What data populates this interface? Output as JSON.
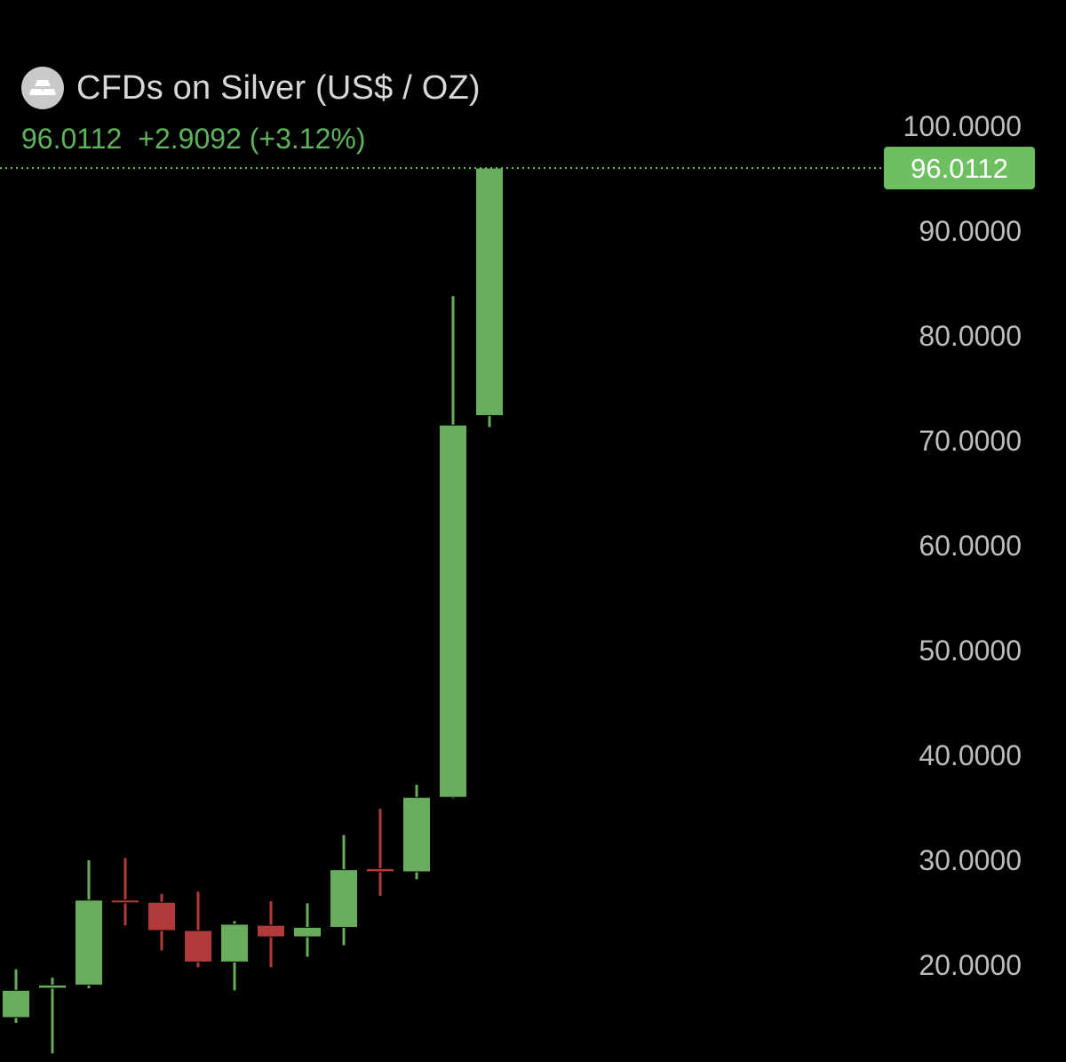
{
  "colors": {
    "background": "#000000",
    "up": "#67ad5b",
    "down": "#b33a3a",
    "axis_text": "#bdbdbd",
    "price_line": "#6fbf6a",
    "price_tag_bg": "#6dbf5f"
  },
  "header": {
    "icon": "silver-bars-icon",
    "title": "CFDs on Silver (US$ / OZ)",
    "last_price": "96.0112",
    "change": "+2.9092",
    "change_pct": "(+3.12%)"
  },
  "chart_data": {
    "type": "candlestick",
    "title": "CFDs on Silver (US$ / OZ)",
    "y_axis_position": "right",
    "ylim": [
      9,
      100
    ],
    "y_ticks": [
      20,
      30,
      40,
      50,
      60,
      70,
      80,
      90,
      100
    ],
    "y_tick_labels": [
      "20.0000",
      "30.0000",
      "40.0000",
      "50.0000",
      "60.0000",
      "70.0000",
      "80.0000",
      "90.0000",
      "100.0000"
    ],
    "last_price": 96.0112,
    "last_price_label": "96.0112",
    "grid": false,
    "candles": [
      {
        "open": 15.0,
        "high": 19.6,
        "low": 14.5,
        "close": 17.6
      },
      {
        "open": 17.8,
        "high": 18.8,
        "low": 11.6,
        "close": 18.1
      },
      {
        "open": 18.1,
        "high": 30.0,
        "low": 17.8,
        "close": 26.2
      },
      {
        "open": 26.2,
        "high": 30.2,
        "low": 23.8,
        "close": 26.1
      },
      {
        "open": 26.0,
        "high": 26.8,
        "low": 21.4,
        "close": 23.3
      },
      {
        "open": 23.3,
        "high": 27.0,
        "low": 19.8,
        "close": 20.3
      },
      {
        "open": 20.3,
        "high": 24.2,
        "low": 17.6,
        "close": 23.9
      },
      {
        "open": 23.8,
        "high": 26.1,
        "low": 19.8,
        "close": 22.7
      },
      {
        "open": 22.7,
        "high": 25.9,
        "low": 20.8,
        "close": 23.6
      },
      {
        "open": 23.6,
        "high": 32.4,
        "low": 21.9,
        "close": 29.1
      },
      {
        "open": 29.2,
        "high": 34.9,
        "low": 26.6,
        "close": 28.9
      },
      {
        "open": 28.9,
        "high": 37.2,
        "low": 28.2,
        "close": 36.0
      },
      {
        "open": 36.0,
        "high": 83.8,
        "low": 35.9,
        "close": 71.5
      },
      {
        "open": 72.4,
        "high": 96.0112,
        "low": 71.3,
        "close": 96.0112
      }
    ]
  }
}
